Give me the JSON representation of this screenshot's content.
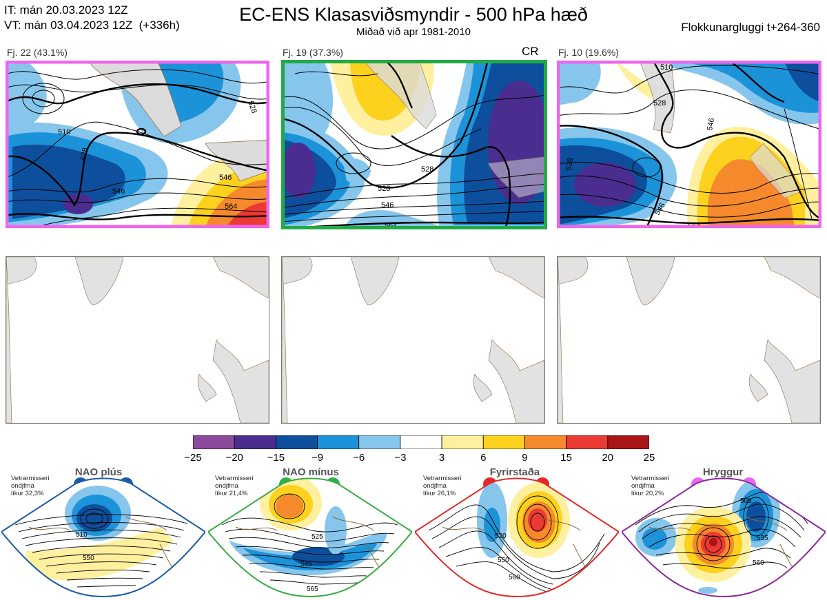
{
  "header": {
    "it_line": "IT: mán 20.03.2023 12Z",
    "vt_line": "VT: mán 03.04.2023 12Z  (+336h)",
    "title": "EC-ENS Klasasviðsmyndir - 500 hPa hæð",
    "subtitle": "Miðað við apr 1981-2010",
    "window": "Flokkunargluggi t+264-360"
  },
  "clusters": [
    {
      "label": "Fj. 22 (43.1%)",
      "frame_color": "#ee66ee",
      "regime_code": "",
      "contours": [
        "510",
        "528",
        "546",
        "564",
        "528",
        "546"
      ]
    },
    {
      "label": "Fj. 19 (37.3%)",
      "frame_color": "#22aa44",
      "regime_code": "CR",
      "contours": [
        "528",
        "528",
        "546",
        "564"
      ]
    },
    {
      "label": "Fj. 10 (19.6%)",
      "frame_color": "#ee66ee",
      "regime_code": "",
      "contours": [
        "510",
        "528",
        "546",
        "546",
        "564",
        "528"
      ]
    }
  ],
  "colorbar": {
    "ticks": [
      "−25",
      "−20",
      "−15",
      "−9",
      "−6",
      "−3",
      "3",
      "6",
      "9",
      "15",
      "20",
      "25"
    ],
    "colors": [
      "#8b4a9c",
      "#4a2d8f",
      "#0d4f9c",
      "#1c93d8",
      "#86c6ec",
      "#ffffff",
      "#fff0a0",
      "#fcd21e",
      "#f5892c",
      "#eb3a33",
      "#aa1515"
    ]
  },
  "regimes": [
    {
      "name": "NAO plús",
      "info": [
        "Vetrarmisseri",
        "ondjfma",
        "líkur 32,3%"
      ],
      "color": "#1a5aa8",
      "dot_color": "#1a5aa8",
      "contours": [
        "510",
        "550"
      ]
    },
    {
      "name": "NAO mínus",
      "info": [
        "Vetrarmisseri",
        "ondjfma",
        "líkur 21,4%"
      ],
      "color": "#3aaa44",
      "dot_color": "#2bb24c",
      "contours": [
        "525",
        "545",
        "565"
      ]
    },
    {
      "name": "Fyrirstaða",
      "info": [
        "Vetrarmisseri",
        "ondjfma",
        "líkur 26,1%"
      ],
      "color": "#e02a2a",
      "dot_color": "#e8262a",
      "contours": [
        "520",
        "550",
        "560"
      ]
    },
    {
      "name": "Hryggur",
      "info": [
        "Vetrarmisseri",
        "ondjfma",
        "líkur 20,2%"
      ],
      "color": "#8a2a9a",
      "dot_color": "#ee66ee",
      "contours": [
        "505",
        "535",
        "560"
      ]
    }
  ]
}
